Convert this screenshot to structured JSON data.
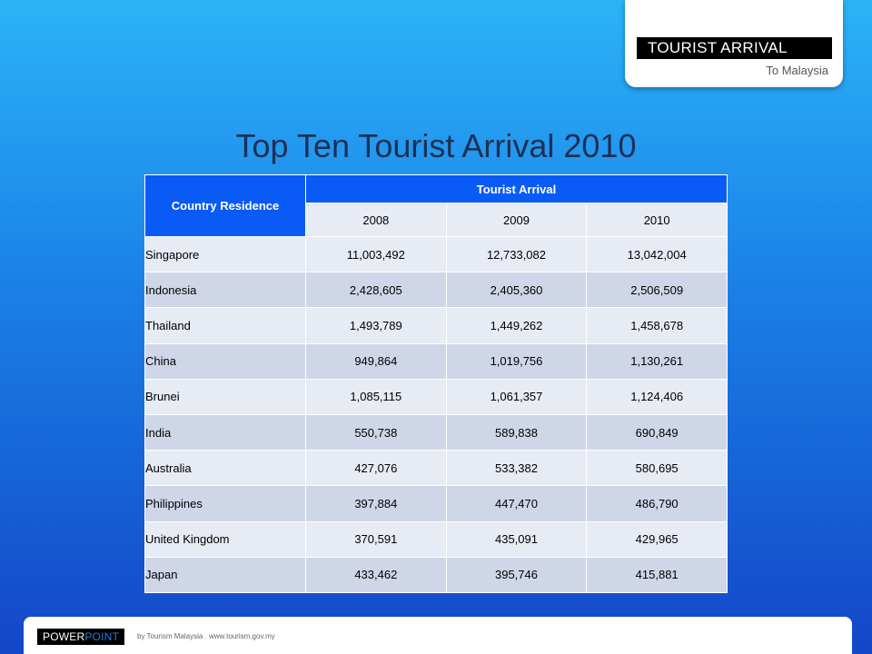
{
  "corner": {
    "title": "TOURIST ARRIVAL",
    "subtitle": "To Malaysia"
  },
  "title": "Top Ten Tourist Arrival 2010",
  "table": {
    "country_header": "Country Residence",
    "group_header": "Tourist Arrival",
    "years": [
      "2008",
      "2009",
      "2010"
    ],
    "rows": [
      [
        "Singapore",
        "11,003,492",
        "12,733,082",
        "13,042,004"
      ],
      [
        "Indonesia",
        "2,428,605",
        "2,405,360",
        "2,506,509"
      ],
      [
        "Thailand",
        "1,493,789",
        "1,449,262",
        "1,458,678"
      ],
      [
        "China",
        "949,864",
        "1,019,756",
        "1,130,261"
      ],
      [
        "Brunei",
        "1,085,115",
        "1,061,357",
        "1,124,406"
      ],
      [
        "India",
        "550,738",
        "589,838",
        "690,849"
      ],
      [
        "Australia",
        "427,076",
        "533,382",
        "580,695"
      ],
      [
        "Philippines",
        "397,884",
        "447,470",
        "486,790"
      ],
      [
        "United Kingdom",
        "370,591",
        "435,091",
        "429,965"
      ],
      [
        "Japan",
        "433,462",
        "395,746",
        "415,881"
      ]
    ]
  },
  "footer": {
    "logo_part1": "POWER",
    "logo_part2": "POINT",
    "credit": "by Tourism Malaysia . www.tourism.gov.my"
  }
}
